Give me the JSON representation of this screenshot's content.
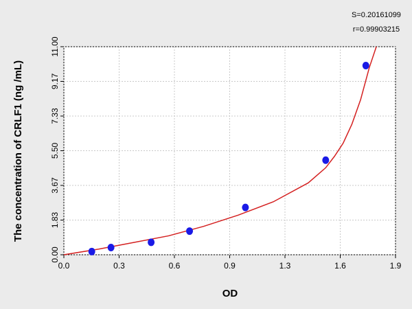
{
  "chart_data": {
    "type": "scatter",
    "x_label": "OD",
    "y_label": "The concentration of CRLF1 (ng /mL)",
    "annotations": [
      "S=0.20161099",
      "r=0.99903215"
    ],
    "x": [
      0.16,
      0.27,
      0.5,
      0.72,
      1.04,
      1.5,
      1.73
    ],
    "values": [
      0.17,
      0.38,
      0.66,
      1.25,
      2.5,
      5.0,
      10.0
    ],
    "color": "#1a1ae6",
    "fit": {
      "color": "#d42020",
      "x": [
        0.0,
        0.2,
        0.4,
        0.6,
        0.8,
        1.0,
        1.2,
        1.4,
        1.5,
        1.55,
        1.6,
        1.65,
        1.7,
        1.75,
        1.79
      ],
      "values": [
        0.0,
        0.3,
        0.65,
        1.0,
        1.5,
        2.1,
        2.8,
        3.8,
        4.6,
        5.2,
        5.9,
        6.9,
        8.2,
        9.9,
        11.0
      ]
    },
    "xlim": [
      0,
      1.9
    ],
    "ylim": [
      0,
      11
    ],
    "xticks": [
      {
        "value": 0,
        "label": "0.0"
      },
      {
        "value": 0.31667,
        "label": "0.3"
      },
      {
        "value": 0.63333,
        "label": "0.6"
      },
      {
        "value": 0.95,
        "label": "0.9"
      },
      {
        "value": 1.26667,
        "label": "1.3"
      },
      {
        "value": 1.58333,
        "label": "1.6"
      },
      1.9
    ],
    "yticks": [
      {
        "value": 0,
        "label": "0.00"
      },
      {
        "value": 1.83333,
        "label": "1.83"
      },
      {
        "value": 3.66667,
        "label": "3.67"
      },
      {
        "value": 5.5,
        "label": "5.50"
      },
      {
        "value": 7.33333,
        "label": "7.33"
      },
      {
        "value": 9.16667,
        "label": "9.17"
      },
      {
        "value": 11,
        "label": "11.00"
      }
    ],
    "grid": true
  }
}
